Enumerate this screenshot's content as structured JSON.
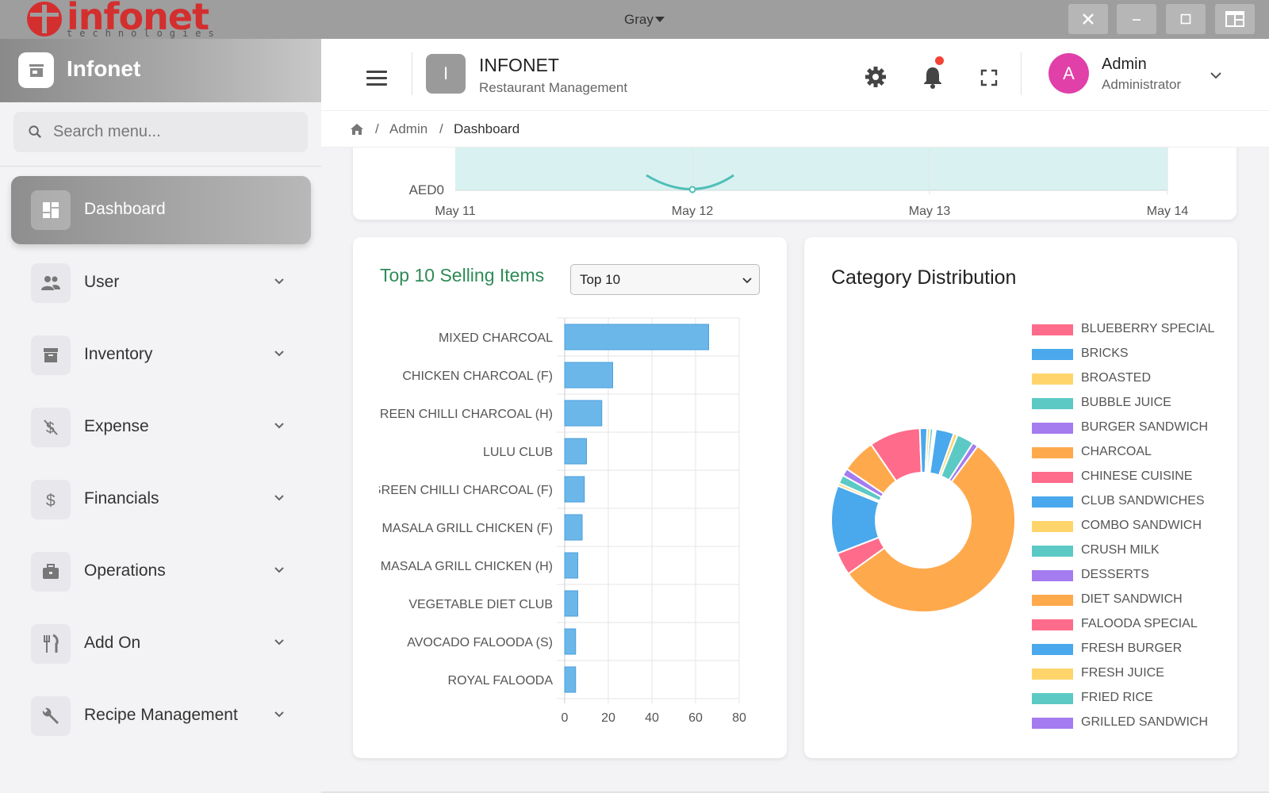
{
  "window": {
    "brand_word": "infonet",
    "brand_tagline": "technologies",
    "theme": "Gray"
  },
  "sidebar": {
    "app_name": "Infonet",
    "search_placeholder": "Search menu...",
    "items": [
      {
        "label": "Dashboard",
        "icon": "dashboard-icon",
        "active": true
      },
      {
        "label": "User",
        "icon": "users-icon"
      },
      {
        "label": "Inventory",
        "icon": "archive-icon"
      },
      {
        "label": "Expense",
        "icon": "money-off-icon"
      },
      {
        "label": "Financials",
        "icon": "dollar-icon"
      },
      {
        "label": "Operations",
        "icon": "briefcase-icon"
      },
      {
        "label": "Add On",
        "icon": "utensils-icon"
      },
      {
        "label": "Recipe Management",
        "icon": "wrench-icon"
      }
    ]
  },
  "header": {
    "app_badge": "I",
    "app_title": "INFONET",
    "app_subtitle": "Restaurant Management",
    "user_initial": "A",
    "user_name": "Admin",
    "user_role": "Administrator"
  },
  "breadcrumb": {
    "items": [
      "Admin",
      "Dashboard"
    ]
  },
  "trend_chart": {
    "y_tick": "AED0",
    "x_ticks": [
      "May 11",
      "May 12",
      "May 13",
      "May 14"
    ]
  },
  "top_items": {
    "title": "Top 10 Selling Items",
    "selected": "Top 10"
  },
  "category": {
    "title": "Category Distribution"
  },
  "chart_data": [
    {
      "type": "bar",
      "orientation": "horizontal",
      "categories": [
        "MIXED CHARCOAL",
        "CHICKEN CHARCOAL (F)",
        "GREEN CHILLI CHARCOAL (H)",
        "LULU CLUB",
        "GREEN CHILLI CHARCOAL (F)",
        "MASALA GRILL CHICKEN (F)",
        "MASALA GRILL CHICKEN (H)",
        "VEGETABLE DIET CLUB",
        "AVOCADO FALOODA (S)",
        "ROYAL FALOODA"
      ],
      "values": [
        66,
        22,
        17,
        10,
        9,
        8,
        6,
        6,
        5,
        5
      ],
      "xlim": [
        0,
        80
      ],
      "x_ticks": [
        0,
        20,
        40,
        60,
        80
      ],
      "color": "#6cb7ea"
    },
    {
      "type": "pie",
      "donut": true,
      "labels": [
        "BLUEBERRY SPECIAL",
        "BRICKS",
        "BROASTED",
        "BUBBLE JUICE",
        "BURGER SANDWICH",
        "CHARCOAL",
        "CHINESE CUISINE",
        "CLUB SANDWICHES",
        "COMBO SANDWICH",
        "CRUSH MILK",
        "DESSERTS",
        "DIET SANDWICH",
        "FALOODA SPECIAL",
        "FRESH BURGER",
        "FRESH JUICE",
        "FRIED RICE",
        "GRILLED SANDWICH"
      ],
      "values": [
        0.3,
        3.2,
        0.7,
        3.0,
        1.0,
        55.0,
        4.0,
        12.0,
        0.5,
        1.5,
        1.3,
        6.0,
        9.0,
        1.3,
        0.5,
        0.5,
        0.2
      ],
      "colors": [
        "#ff6b8a",
        "#4aa8ec",
        "#ffd56b",
        "#5cc9c5",
        "#a47cf0",
        "#ffa94d"
      ]
    }
  ]
}
